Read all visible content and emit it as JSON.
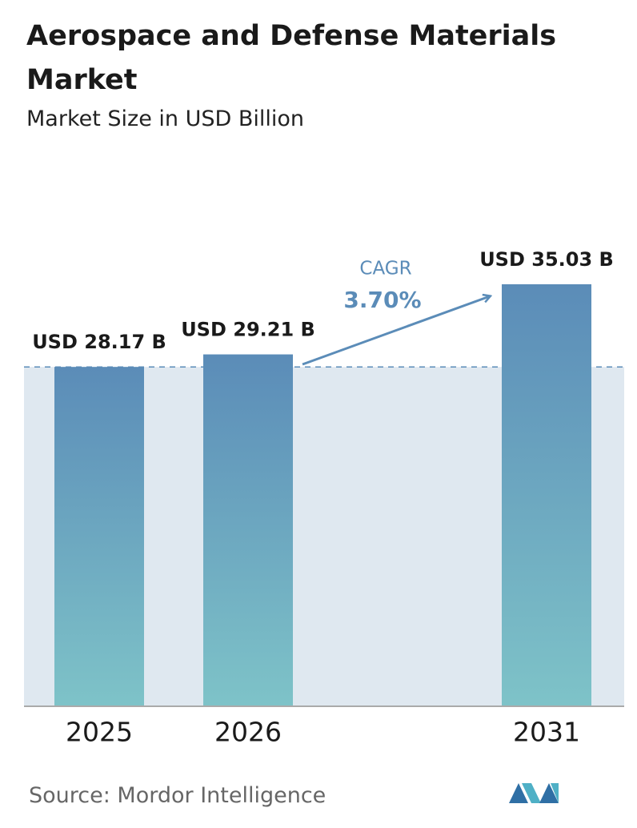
{
  "chart_data": {
    "type": "bar",
    "title": "Aerospace and Defense Materials Market",
    "subtitle": "Market Size in USD Billion",
    "categories": [
      "2025",
      "2026",
      "2031"
    ],
    "values": [
      28.17,
      29.21,
      35.03
    ],
    "value_labels": [
      "USD 28.17 B",
      "USD 29.21 B",
      "USD 35.03 B"
    ],
    "annotation": {
      "label": "CAGR",
      "value": "3.70%"
    },
    "source": "Source:  Mordor Intelligence"
  }
}
